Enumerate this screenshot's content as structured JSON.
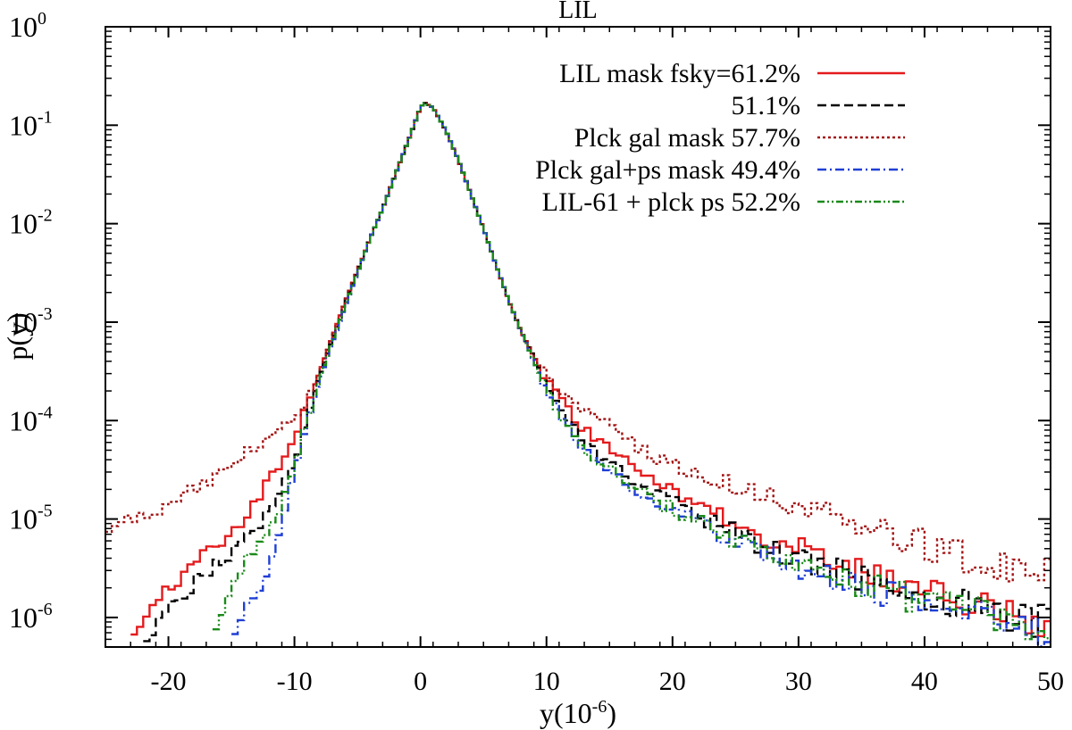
{
  "chart_data": {
    "type": "line",
    "title": "LIL",
    "xlabel": "y(10",
    "xlabel_sup": "-6",
    "xlabel_tail": ")",
    "ylabel": "p(y)",
    "xlim": [
      -25,
      50
    ],
    "ylim_log10": [
      -6.3,
      0
    ],
    "yscale": "log",
    "x_ticks": [
      -20,
      -10,
      0,
      10,
      20,
      30,
      40,
      50
    ],
    "x_tick_labels": [
      "-20",
      "-10",
      "0",
      "10",
      "20",
      "30",
      "40",
      "50"
    ],
    "y_ticks": [
      -6,
      -5,
      -4,
      -3,
      -2,
      -1,
      0
    ],
    "y_tick_labels": [
      {
        "base": "10",
        "exp": "-6"
      },
      {
        "base": "10",
        "exp": "-5"
      },
      {
        "base": "10",
        "exp": "-4"
      },
      {
        "base": "10",
        "exp": "-3"
      },
      {
        "base": "10",
        "exp": "-2"
      },
      {
        "base": "10",
        "exp": "-1"
      },
      {
        "base": "10",
        "exp": "0"
      }
    ],
    "legend_position": "top-right",
    "peak": {
      "x": 0.3,
      "p": 0.17
    },
    "series": [
      {
        "name": "LIL mask fsky=61.2%",
        "color": "#e41a1c",
        "dash": "solid",
        "x": [
          -23,
          -22,
          -21,
          -20,
          -19,
          -18,
          -17,
          -16,
          -15,
          -14,
          -13,
          -12,
          -11,
          -10,
          -9,
          -8,
          -7,
          -6,
          -5,
          -4,
          -3,
          -2,
          -1,
          0,
          0.3,
          1,
          2,
          3,
          4,
          5,
          6,
          7,
          8,
          9,
          10,
          11,
          12,
          13,
          14,
          15,
          16,
          17,
          18,
          19,
          20,
          22,
          24,
          26,
          28,
          30,
          32,
          34,
          36,
          38,
          40,
          42,
          44,
          46,
          48,
          50
        ],
        "log10p": [
          -6.25,
          -6.0,
          -5.85,
          -5.7,
          -5.6,
          -5.45,
          -5.3,
          -5.25,
          -5.12,
          -5.0,
          -4.8,
          -4.6,
          -4.4,
          -4.15,
          -3.85,
          -3.5,
          -3.15,
          -2.8,
          -2.48,
          -2.15,
          -1.85,
          -1.5,
          -1.17,
          -0.82,
          -0.77,
          -0.82,
          -1.05,
          -1.35,
          -1.7,
          -2.05,
          -2.42,
          -2.78,
          -3.1,
          -3.35,
          -3.6,
          -3.75,
          -3.95,
          -4.1,
          -4.2,
          -4.3,
          -4.4,
          -4.48,
          -4.56,
          -4.64,
          -4.72,
          -4.85,
          -4.98,
          -5.1,
          -5.2,
          -5.3,
          -5.4,
          -5.5,
          -5.6,
          -5.68,
          -5.75,
          -5.82,
          -5.9,
          -5.95,
          -6.02,
          -6.05
        ]
      },
      {
        "name": "51.1%",
        "color": "#000000",
        "dash": "dashed",
        "x": [
          -22,
          -21,
          -20,
          -19,
          -18,
          -17,
          -16,
          -15,
          -14,
          -13,
          -12,
          -11,
          -10,
          -9,
          -8,
          -7,
          -6,
          -5,
          -4,
          -3,
          -2,
          -1,
          0,
          0.3,
          1,
          2,
          3,
          4,
          5,
          6,
          7,
          8,
          9,
          10,
          11,
          12,
          13,
          14,
          15,
          16,
          17,
          18,
          19,
          20,
          22,
          24,
          26,
          28,
          30,
          32,
          34,
          36,
          38,
          40,
          42,
          44,
          46,
          48,
          50
        ],
        "log10p": [
          -6.25,
          -6.05,
          -5.95,
          -5.8,
          -5.65,
          -5.55,
          -5.45,
          -5.35,
          -5.2,
          -5.1,
          -4.9,
          -4.65,
          -4.45,
          -3.95,
          -3.55,
          -3.18,
          -2.82,
          -2.48,
          -2.15,
          -1.85,
          -1.5,
          -1.17,
          -0.82,
          -0.77,
          -0.82,
          -1.05,
          -1.35,
          -1.7,
          -2.05,
          -2.42,
          -2.78,
          -3.1,
          -3.35,
          -3.65,
          -3.82,
          -4.05,
          -4.2,
          -4.32,
          -4.43,
          -4.52,
          -4.6,
          -4.68,
          -4.76,
          -4.84,
          -4.96,
          -5.08,
          -5.2,
          -5.3,
          -5.4,
          -5.48,
          -5.56,
          -5.64,
          -5.72,
          -5.78,
          -5.85,
          -5.9,
          -5.95,
          -6.0,
          -6.05
        ]
      },
      {
        "name": "Plck gal mask 57.7%",
        "color": "#a31414",
        "dash": "dotted",
        "x": [
          -25,
          -21,
          -17,
          -13,
          -12,
          -11,
          -10,
          -9,
          -8,
          -7,
          -6,
          -5,
          -4,
          -3,
          -2,
          -1,
          0,
          0.3,
          1,
          2,
          3,
          4,
          5,
          6,
          7,
          8,
          9,
          10,
          11,
          12,
          13,
          14,
          15,
          16,
          17,
          18,
          19,
          20,
          22,
          24,
          26,
          28,
          30,
          32,
          34,
          36,
          38,
          40,
          42,
          44,
          46,
          48,
          50
        ],
        "log10p": [
          -5.05,
          -4.92,
          -4.62,
          -4.25,
          -4.2,
          -4.1,
          -3.95,
          -3.8,
          -3.5,
          -3.15,
          -2.8,
          -2.48,
          -2.15,
          -1.85,
          -1.5,
          -1.17,
          -0.82,
          -0.77,
          -0.82,
          -1.05,
          -1.35,
          -1.7,
          -2.05,
          -2.42,
          -2.78,
          -3.1,
          -3.35,
          -3.55,
          -3.7,
          -3.8,
          -3.88,
          -3.95,
          -4.05,
          -4.15,
          -4.25,
          -4.35,
          -4.4,
          -4.45,
          -4.55,
          -4.62,
          -4.7,
          -4.8,
          -4.88,
          -4.95,
          -5.02,
          -5.1,
          -5.18,
          -5.26,
          -5.32,
          -5.4,
          -5.45,
          -5.52,
          -5.58
        ]
      },
      {
        "name": "Plck gal+ps mask 49.4%",
        "color": "#1f3fd6",
        "dash": "dashdot",
        "x": [
          -15,
          -14,
          -13,
          -12,
          -11,
          -10,
          -9,
          -8,
          -7,
          -6,
          -5,
          -4,
          -3,
          -2,
          -1,
          0,
          0.3,
          1,
          2,
          3,
          4,
          5,
          6,
          7,
          8,
          9,
          10,
          11,
          12,
          13,
          14,
          15,
          16,
          17,
          18,
          19,
          20,
          22,
          24,
          26,
          28,
          30,
          32,
          34,
          36,
          38,
          40,
          42,
          44,
          46,
          48,
          50
        ],
        "log10p": [
          -6.25,
          -5.95,
          -5.75,
          -5.5,
          -5.05,
          -4.55,
          -4.05,
          -3.6,
          -3.22,
          -2.85,
          -2.5,
          -2.15,
          -1.85,
          -1.5,
          -1.17,
          -0.82,
          -0.77,
          -0.82,
          -1.05,
          -1.35,
          -1.7,
          -2.05,
          -2.42,
          -2.78,
          -3.1,
          -3.4,
          -3.7,
          -3.9,
          -4.12,
          -4.3,
          -4.42,
          -4.52,
          -4.62,
          -4.7,
          -4.78,
          -4.86,
          -4.92,
          -5.04,
          -5.16,
          -5.28,
          -5.38,
          -5.48,
          -5.56,
          -5.64,
          -5.72,
          -5.8,
          -5.86,
          -5.92,
          -5.98,
          -6.04,
          -6.1,
          -6.15
        ]
      },
      {
        "name": "LIL-61 + plck ps 52.2%",
        "color": "#1a8a1a",
        "dash": "dashdotdot",
        "x": [
          -16.5,
          -16,
          -15,
          -14,
          -13,
          -12,
          -11,
          -10,
          -9,
          -8,
          -7,
          -6,
          -5,
          -4,
          -3,
          -2,
          -1,
          0,
          0.3,
          1,
          2,
          3,
          4,
          5,
          6,
          7,
          8,
          9,
          10,
          11,
          12,
          13,
          14,
          15,
          16,
          17,
          18,
          19,
          20,
          22,
          24,
          26,
          28,
          30,
          32,
          34,
          36,
          38,
          40,
          42,
          44,
          46,
          48,
          50
        ],
        "log10p": [
          -6.25,
          -6.0,
          -5.75,
          -5.45,
          -5.3,
          -5.15,
          -4.85,
          -4.45,
          -4.0,
          -3.58,
          -3.2,
          -2.84,
          -2.5,
          -2.15,
          -1.85,
          -1.5,
          -1.17,
          -0.82,
          -0.77,
          -0.82,
          -1.05,
          -1.35,
          -1.7,
          -2.05,
          -2.42,
          -2.78,
          -3.1,
          -3.4,
          -3.7,
          -3.92,
          -4.12,
          -4.28,
          -4.4,
          -4.5,
          -4.6,
          -4.68,
          -4.76,
          -4.84,
          -4.9,
          -5.02,
          -5.14,
          -5.26,
          -5.36,
          -5.46,
          -5.54,
          -5.62,
          -5.7,
          -5.78,
          -5.84,
          -5.9,
          -5.96,
          -6.02,
          -6.08,
          -6.12
        ]
      }
    ]
  }
}
